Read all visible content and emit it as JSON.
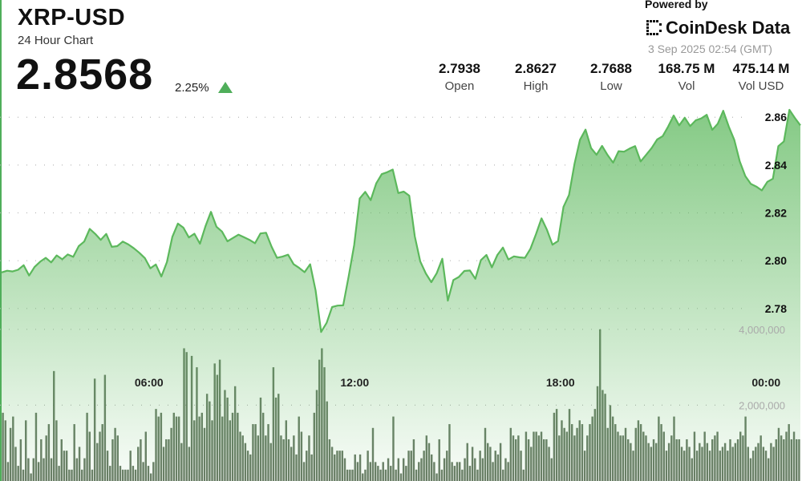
{
  "header": {
    "title": "XRP-USD",
    "subtitle": "24 Hour Chart",
    "price": "2.8568",
    "change": "2.25%",
    "powered_by": "Powered by",
    "brand": "CoinDesk Data",
    "timestamp": "3 Sep 2025 02:54 (GMT)"
  },
  "stats": [
    {
      "value": "2.7938",
      "label": "Open"
    },
    {
      "value": "2.8627",
      "label": "High"
    },
    {
      "value": "2.7688",
      "label": "Low"
    },
    {
      "value": "168.75 M",
      "label": "Vol"
    },
    {
      "value": "475.14 M",
      "label": "Vol USD"
    }
  ],
  "colors": {
    "up": "#4fae5a",
    "line": "#5cb85c",
    "bar": "#5a6e56",
    "grid": "#b8b8b8"
  },
  "chart_data": {
    "type": "area",
    "title": "XRP-USD",
    "x_ticks": [
      "06:00",
      "12:00",
      "18:00",
      "00:00"
    ],
    "x_tick_hours": [
      6,
      12,
      18,
      24
    ],
    "x_range_hours": [
      1.7,
      25.0
    ],
    "y_ticks": [
      "2.78",
      "2.80",
      "2.82",
      "2.84",
      "2.86"
    ],
    "ylim": [
      2.7615,
      2.8755
    ],
    "vol_ticks": [
      "2,000,000",
      "4,000,000"
    ],
    "vol_lim": [
      0,
      7400000
    ],
    "grid": true,
    "price": [
      2.7951,
      2.7958,
      2.7955,
      2.7962,
      2.7981,
      2.7938,
      2.7974,
      2.7996,
      2.8012,
      2.7993,
      2.8022,
      2.8006,
      2.8026,
      2.8016,
      2.8061,
      2.808,
      2.8133,
      2.8112,
      2.8087,
      2.8112,
      2.8058,
      2.8061,
      2.808,
      2.8068,
      2.8052,
      2.8033,
      2.8011,
      2.7968,
      2.7984,
      2.7934,
      2.7994,
      2.81,
      2.8155,
      2.8138,
      2.8097,
      2.8113,
      2.8071,
      2.8144,
      2.8204,
      2.8142,
      2.8122,
      2.8081,
      2.8095,
      2.8109,
      2.8098,
      2.8087,
      2.8073,
      2.8114,
      2.8117,
      2.8059,
      2.8012,
      2.8017,
      2.8025,
      2.7985,
      2.797,
      2.7952,
      2.7985,
      2.7876,
      2.7702,
      2.774,
      2.7806,
      2.7812,
      2.7813,
      2.7934,
      2.8065,
      2.826,
      2.8288,
      2.8253,
      2.8323,
      2.8362,
      2.837,
      2.8381,
      2.8283,
      2.8289,
      2.8272,
      2.8102,
      2.7997,
      2.7947,
      2.791,
      2.7948,
      2.8008,
      2.7833,
      2.7919,
      2.7932,
      2.7957,
      2.7959,
      2.7924,
      2.8002,
      2.8024,
      2.7972,
      2.8024,
      2.8055,
      2.8005,
      2.8018,
      2.8014,
      2.8012,
      2.805,
      2.8111,
      2.8177,
      2.8129,
      2.8067,
      2.8082,
      2.8225,
      2.8275,
      2.8406,
      2.8506,
      2.8548,
      2.8471,
      2.8443,
      2.848,
      2.8442,
      2.841,
      2.8458,
      2.8456,
      2.8469,
      2.8479,
      2.8415,
      2.8443,
      2.8471,
      2.8507,
      2.8521,
      2.8561,
      2.8607,
      2.8566,
      2.8598,
      2.8563,
      2.8587,
      2.8595,
      2.861,
      2.8547,
      2.8573,
      2.8627,
      2.8561,
      2.8505,
      2.8415,
      2.8354,
      2.8321,
      2.831,
      2.8294,
      2.833,
      2.8343,
      2.8479,
      2.8499,
      2.8631,
      2.8597,
      2.8566
    ],
    "volume": [
      1800000,
      1600000,
      500000,
      1400000,
      1700000,
      900000,
      400000,
      1100000,
      300000,
      1600000,
      600000,
      200000,
      600000,
      1800000,
      500000,
      1100000,
      600000,
      1200000,
      1500000,
      600000,
      2900000,
      1600000,
      400000,
      1100000,
      800000,
      800000,
      300000,
      300000,
      1500000,
      600000,
      900000,
      300000,
      600000,
      1800000,
      1300000,
      300000,
      2700000,
      1000000,
      1300000,
      1500000,
      2800000,
      800000,
      400000,
      1100000,
      1400000,
      1200000,
      400000,
      300000,
      300000,
      300000,
      800000,
      400000,
      300000,
      900000,
      1100000,
      500000,
      1300000,
      400000,
      200000,
      500000,
      1900000,
      1700000,
      1800000,
      900000,
      1100000,
      1100000,
      1400000,
      1800000,
      1700000,
      1700000,
      1000000,
      3500000,
      3400000,
      900000,
      3300000,
      1600000,
      3000000,
      1700000,
      1800000,
      1400000,
      2300000,
      2100000,
      1600000,
      3100000,
      2800000,
      3200000,
      1700000,
      2400000,
      2200000,
      1600000,
      1800000,
      2500000,
      1800000,
      1300000,
      1200000,
      1000000,
      800000,
      700000,
      1500000,
      1500000,
      1200000,
      2200000,
      1800000,
      1200000,
      1500000,
      1000000,
      3000000,
      2200000,
      2300000,
      1200000,
      1100000,
      1600000,
      1100000,
      900000,
      1200000,
      700000,
      1700000,
      1300000,
      500000,
      800000,
      1200000,
      700000,
      1800000,
      2400000,
      3200000,
      3500000,
      3000000,
      2100000,
      1100000,
      900000,
      700000,
      800000,
      800000,
      800000,
      600000,
      300000,
      300000,
      300000,
      700000,
      500000,
      700000,
      200000,
      300000,
      800000,
      500000,
      1400000,
      500000,
      400000,
      300000,
      500000,
      300000,
      600000,
      400000,
      1700000,
      300000,
      600000,
      200000,
      600000,
      400000,
      800000,
      800000,
      1100000,
      300000,
      500000,
      600000,
      800000,
      1200000,
      1000000,
      700000,
      500000,
      200000,
      1100000,
      300000,
      600000,
      800000,
      1500000,
      500000,
      400000,
      500000,
      500000,
      300000,
      600000,
      1000000,
      400000,
      900000,
      600000,
      300000,
      800000,
      600000,
      1400000,
      1000000,
      900000,
      500000,
      800000,
      700000,
      1000000,
      300000,
      600000,
      500000,
      1400000,
      1200000,
      1100000,
      1200000,
      800000,
      300000,
      1300000,
      1100000,
      900000,
      1300000,
      1300000,
      1200000,
      1300000,
      1100000,
      1100000,
      900000,
      600000,
      1800000,
      1900000,
      1200000,
      1600000,
      1400000,
      1300000,
      1900000,
      1500000,
      1200000,
      1400000,
      1600000,
      1500000,
      800000,
      1200000,
      1500000,
      1700000,
      1900000,
      2500000,
      4000000,
      2400000,
      2300000,
      1400000,
      2000000,
      1700000,
      1500000,
      1300000,
      1200000,
      1200000,
      1400000,
      1100000,
      1000000,
      800000,
      1400000,
      1600000,
      1500000,
      1300000,
      1200000,
      1000000,
      900000,
      1100000,
      1000000,
      1700000,
      1500000,
      1300000,
      800000,
      1000000,
      1200000,
      1700000,
      1100000,
      1100000,
      900000,
      800000,
      1100000,
      900000,
      600000,
      1300000,
      800000,
      1000000,
      900000,
      1300000,
      1000000,
      800000,
      1100000,
      1200000,
      1300000,
      800000,
      900000,
      1000000,
      800000,
      1100000,
      900000,
      1000000,
      1100000,
      1300000,
      1200000,
      1700000,
      900000,
      600000,
      800000,
      900000,
      1000000,
      1200000,
      900000,
      800000,
      600000,
      1000000,
      900000,
      1100000,
      1400000,
      1200000,
      1100000,
      1300000,
      1500000,
      1100000,
      1300000,
      1100000,
      1100000
    ]
  }
}
